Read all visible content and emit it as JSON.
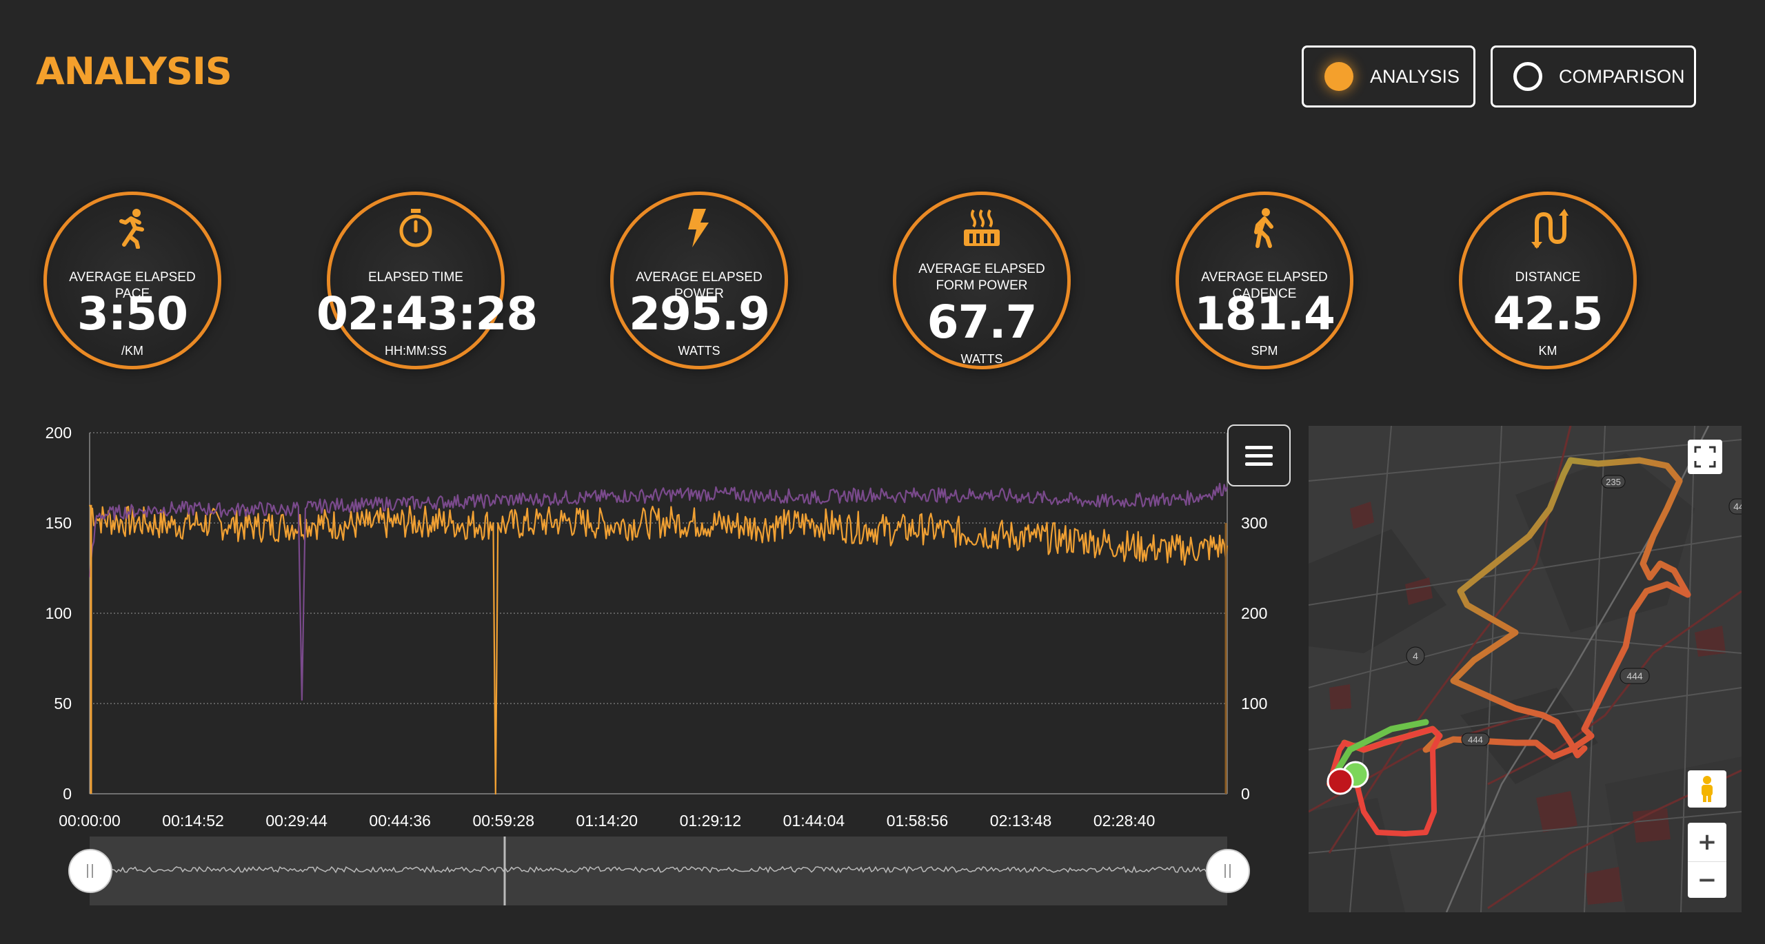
{
  "header": {
    "title": "ANALYSIS",
    "modes": [
      {
        "label": "ANALYSIS",
        "selected": true
      },
      {
        "label": "COMPARISON",
        "selected": false
      }
    ]
  },
  "metrics": [
    {
      "label": "AVERAGE ELAPSED PACE",
      "value": "3:50",
      "unit": "/KM",
      "icon": "running-icon"
    },
    {
      "label": "ELAPSED TIME",
      "value": "02:43:28",
      "unit": "HH:MM:SS",
      "icon": "stopwatch-icon"
    },
    {
      "label": "AVERAGE ELAPSED POWER",
      "value": "295.9",
      "unit": "WATTS",
      "icon": "lightning-icon"
    },
    {
      "label": "AVERAGE ELAPSED FORM POWER",
      "value": "67.7",
      "unit": "WATTS",
      "icon": "heat-icon"
    },
    {
      "label": "AVERAGE ELAPSED CADENCE",
      "value": "181.4",
      "unit": "SPM",
      "icon": "walking-icon"
    },
    {
      "label": "DISTANCE",
      "value": "42.5",
      "unit": "KM",
      "icon": "distance-arrows-icon"
    }
  ],
  "colors": {
    "accent": "#f4a02c",
    "gauge_ring": "#ea8a25",
    "cadence_series": "#7a4a8c",
    "power_series": "#f0a033",
    "route_good": "#6cc24a",
    "route_bad": "#e8443a",
    "start_marker": "#c0161c",
    "end_marker": "#7cd65a"
  },
  "chart_data": {
    "type": "line",
    "x_tick_labels": [
      "00:00:00",
      "00:14:52",
      "00:29:44",
      "00:44:36",
      "00:59:28",
      "01:14:20",
      "01:29:12",
      "01:44:04",
      "01:58:56",
      "02:13:48",
      "02:28:40"
    ],
    "x_range_seconds": [
      0,
      9808
    ],
    "y_left_ticks": [
      "0",
      "50",
      "100",
      "150",
      "200"
    ],
    "ylim_left": [
      0,
      200
    ],
    "y_right_ticks": [
      "0",
      "100",
      "200",
      "300"
    ],
    "ylim_right": [
      0,
      400
    ],
    "grid": true,
    "series": [
      {
        "axis": "left",
        "x_seconds": [
          0,
          60,
          240,
          480,
          720,
          960,
          1200,
          1440,
          1680,
          1800,
          1830,
          1860,
          1920,
          2160,
          2400,
          2640,
          2880,
          3120,
          3360,
          3600,
          3840,
          4080,
          4320,
          4560,
          4800,
          5040,
          5280,
          5520,
          5760,
          6000,
          6240,
          6480,
          6720,
          6960,
          7200,
          7440,
          7680,
          7920,
          8160,
          8400,
          8640,
          8880,
          9120,
          9360,
          9600,
          9808
        ],
        "values": [
          120,
          154,
          156,
          157,
          158,
          158,
          157,
          158,
          157,
          159,
          52,
          158,
          159,
          160,
          160,
          161,
          161,
          162,
          162,
          163,
          163,
          164,
          164,
          165,
          165,
          166,
          166,
          166,
          165,
          165,
          164,
          165,
          166,
          165,
          166,
          165,
          166,
          165,
          164,
          163,
          162,
          162,
          163,
          163,
          165,
          170
        ]
      },
      {
        "axis": "right",
        "x_seconds": [
          0,
          60,
          240,
          480,
          720,
          960,
          1200,
          1440,
          1680,
          1920,
          2160,
          2400,
          2640,
          2880,
          3120,
          3360,
          3480,
          3500,
          3520,
          3600,
          3840,
          4080,
          4320,
          4560,
          4800,
          5040,
          5280,
          5520,
          5760,
          6000,
          6240,
          6480,
          6720,
          6960,
          7200,
          7440,
          7680,
          7920,
          8160,
          8400,
          8640,
          8880,
          9120,
          9360,
          9600,
          9808
        ],
        "values": [
          320,
          305,
          302,
          300,
          298,
          300,
          298,
          296,
          297,
          300,
          298,
          298,
          300,
          302,
          300,
          298,
          300,
          0,
          300,
          298,
          300,
          302,
          300,
          298,
          300,
          302,
          300,
          298,
          296,
          298,
          300,
          296,
          294,
          292,
          294,
          290,
          288,
          286,
          284,
          282,
          280,
          276,
          272,
          270,
          272,
          275
        ]
      }
    ]
  },
  "map": {
    "road_labels": [
      "235",
      "4",
      "444",
      "444",
      "44"
    ]
  }
}
